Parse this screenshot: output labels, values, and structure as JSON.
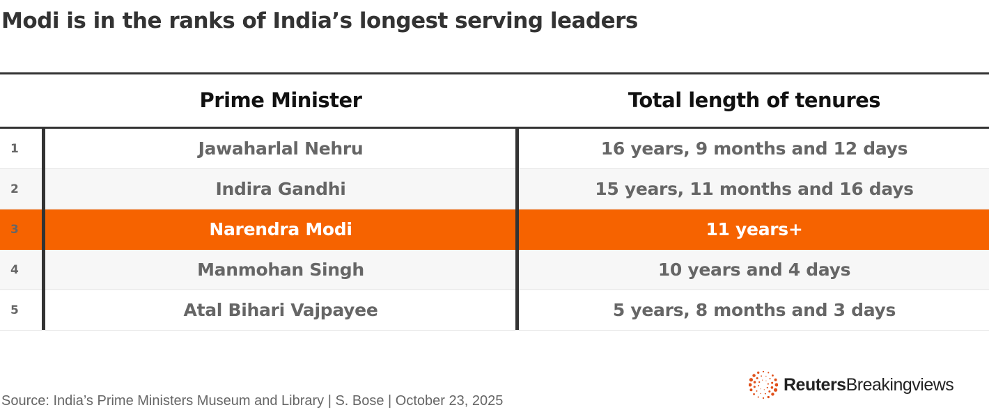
{
  "title": "Modi is in the ranks of India’s longest serving leaders",
  "chart_data": {
    "type": "table",
    "columns": [
      "",
      "Prime Minister",
      "Total length of tenures"
    ],
    "rows": [
      {
        "rank": "1",
        "name": "Jawaharlal Nehru",
        "tenure": "16 years, 9 months and 12 days",
        "highlight": false
      },
      {
        "rank": "2",
        "name": "Indira Gandhi",
        "tenure": "15 years, 11 months and 16 days",
        "highlight": false
      },
      {
        "rank": "3",
        "name": "Narendra Modi",
        "tenure": "11 years+",
        "highlight": true
      },
      {
        "rank": "4",
        "name": "Manmohan Singh",
        "tenure": "10 years and 4 days",
        "highlight": false
      },
      {
        "rank": "5",
        "name": "Atal Bihari Vajpayee",
        "tenure": "5 years, 8 months and 3 days",
        "highlight": false
      }
    ]
  },
  "colors": {
    "highlight": "#f66300",
    "text": "#666666",
    "rule": "#333333",
    "alt_row": "#f7f7f7"
  },
  "source": "Source: India’s Prime Ministers Museum and Library | S. Bose | October 23, 2025",
  "logo": {
    "bold": "Reuters",
    "rest": "Breakingviews"
  }
}
